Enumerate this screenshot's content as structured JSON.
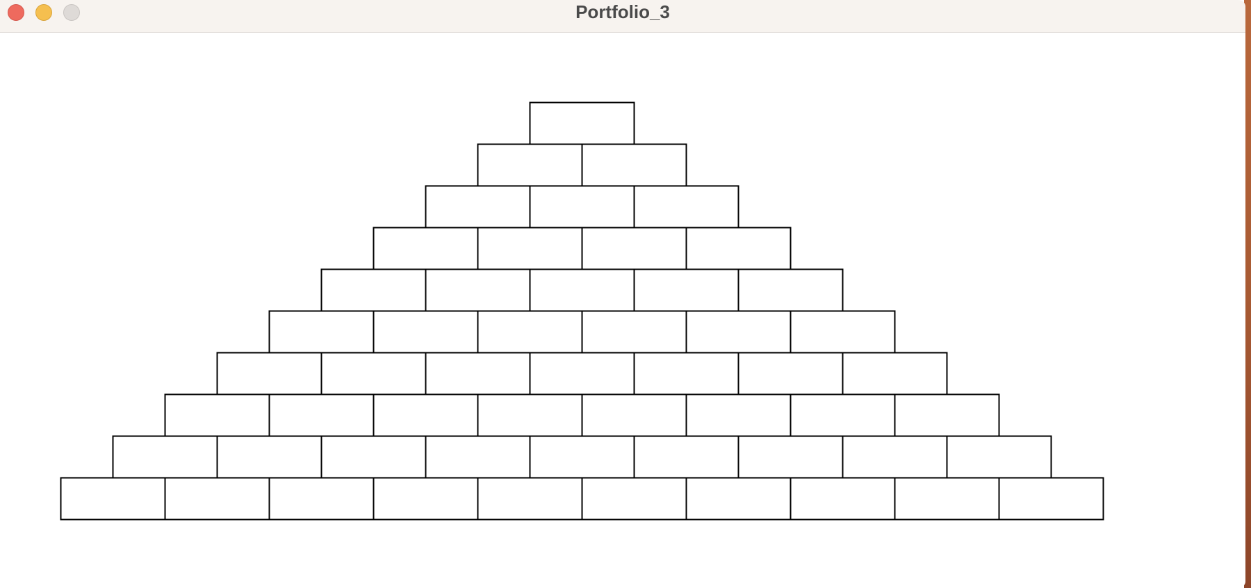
{
  "window": {
    "title": "Portfolio_3"
  },
  "traffic_lights": [
    {
      "name": "close",
      "color": "#ee6a5e"
    },
    {
      "name": "minimize",
      "color": "#f5bf4f"
    },
    {
      "name": "zoom",
      "color": "#dedad7"
    }
  ],
  "pyramid": {
    "rows": 10,
    "top_row_bricks": 1,
    "bottom_row_bricks": 10,
    "brick_fill": "#ffffff",
    "brick_stroke": "#000000"
  }
}
